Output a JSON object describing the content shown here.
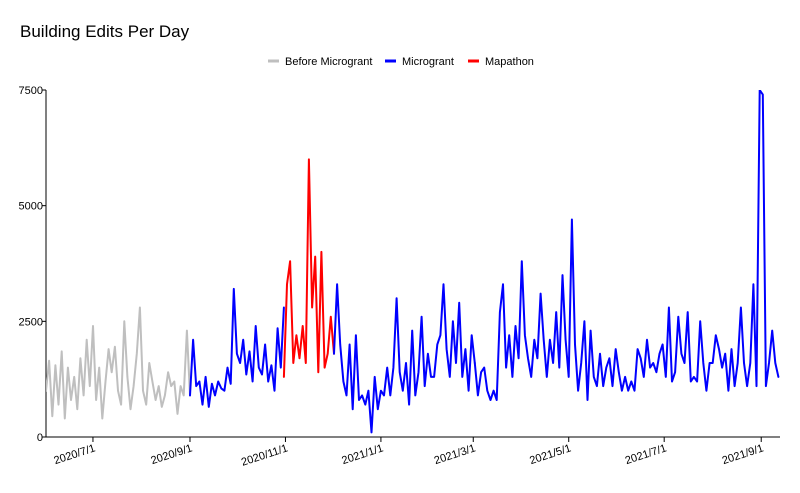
{
  "chart_data": {
    "type": "line",
    "title": "Building Edits Per Day",
    "xlabel": "",
    "ylabel": "",
    "ylim": [
      0,
      7500
    ],
    "xlim": [
      "2020-06-01",
      "2021-09-13"
    ],
    "yticks": [
      0,
      2500,
      5000,
      7500
    ],
    "xticks": [
      "2020-07-01",
      "2020-09-01",
      "2020-11-01",
      "2021-01-01",
      "2021-03-01",
      "2021-05-01",
      "2021-07-01",
      "2021-09-01"
    ],
    "xtick_labels": [
      "2020/7/1",
      "2020/9/1",
      "2020/11/1",
      "2021/1/1",
      "2021/3/1",
      "2021/5/1",
      "2021/7/1",
      "2021/9/1"
    ],
    "legend_position": "top-center",
    "grid": false,
    "series": [
      {
        "name": "Before Microgrant",
        "color": "#bfbfbf",
        "x": [
          "2020-06-01",
          "2020-06-03",
          "2020-06-05",
          "2020-06-07",
          "2020-06-09",
          "2020-06-11",
          "2020-06-13",
          "2020-06-15",
          "2020-06-17",
          "2020-06-19",
          "2020-06-21",
          "2020-06-23",
          "2020-06-25",
          "2020-06-27",
          "2020-06-29",
          "2020-07-01",
          "2020-07-03",
          "2020-07-05",
          "2020-07-07",
          "2020-07-09",
          "2020-07-11",
          "2020-07-13",
          "2020-07-15",
          "2020-07-17",
          "2020-07-19",
          "2020-07-21",
          "2020-07-23",
          "2020-07-25",
          "2020-07-27",
          "2020-07-29",
          "2020-07-31",
          "2020-08-02",
          "2020-08-04",
          "2020-08-06",
          "2020-08-08",
          "2020-08-10",
          "2020-08-12",
          "2020-08-14",
          "2020-08-16",
          "2020-08-18",
          "2020-08-20",
          "2020-08-22",
          "2020-08-24",
          "2020-08-26",
          "2020-08-28",
          "2020-08-30",
          "2020-09-01"
        ],
        "y": [
          1000,
          1650,
          450,
          1550,
          700,
          1850,
          400,
          1500,
          800,
          1300,
          600,
          1700,
          900,
          2100,
          1100,
          2400,
          800,
          1500,
          400,
          1200,
          1900,
          1400,
          1950,
          1000,
          700,
          2500,
          1300,
          600,
          1100,
          1800,
          2800,
          1000,
          700,
          1600,
          1200,
          800,
          1100,
          650,
          900,
          1400,
          1100,
          1200,
          500,
          1100,
          900,
          2300,
          900
        ]
      },
      {
        "name": "Microgrant",
        "color": "#0000ff",
        "x": [
          "2020-09-01",
          "2020-09-03",
          "2020-09-05",
          "2020-09-07",
          "2020-09-09",
          "2020-09-11",
          "2020-09-13",
          "2020-09-15",
          "2020-09-17",
          "2020-09-19",
          "2020-09-21",
          "2020-09-23",
          "2020-09-25",
          "2020-09-27",
          "2020-09-29",
          "2020-10-01",
          "2020-10-03",
          "2020-10-05",
          "2020-10-07",
          "2020-10-09",
          "2020-10-11",
          "2020-10-13",
          "2020-10-15",
          "2020-10-17",
          "2020-10-19",
          "2020-10-21",
          "2020-10-23",
          "2020-10-25",
          "2020-10-27",
          "2020-10-29",
          "2020-10-31"
        ],
        "y": [
          900,
          2100,
          1100,
          1200,
          700,
          1300,
          650,
          1150,
          900,
          1200,
          1050,
          1000,
          1500,
          1150,
          3200,
          1800,
          1600,
          2100,
          1350,
          1850,
          1200,
          2400,
          1500,
          1350,
          2000,
          1200,
          1550,
          1000,
          2350,
          1500,
          2800
        ]
      },
      {
        "name": "Mapathon",
        "color": "#ff0000",
        "x": [
          "2020-10-31",
          "2020-11-02",
          "2020-11-04",
          "2020-11-06",
          "2020-11-08",
          "2020-11-10",
          "2020-11-12",
          "2020-11-14",
          "2020-11-16",
          "2020-11-18",
          "2020-11-20",
          "2020-11-22",
          "2020-11-24",
          "2020-11-26",
          "2020-11-28",
          "2020-11-30",
          "2020-12-02"
        ],
        "y": [
          1300,
          3300,
          3800,
          1600,
          2200,
          1700,
          2400,
          1600,
          6000,
          2800,
          3900,
          1400,
          4000,
          1500,
          1800,
          2600,
          1800
        ]
      },
      {
        "name": "Microgrant",
        "color": "#0000ff",
        "x": [
          "2020-12-02",
          "2020-12-04",
          "2020-12-06",
          "2020-12-08",
          "2020-12-10",
          "2020-12-12",
          "2020-12-14",
          "2020-12-16",
          "2020-12-18",
          "2020-12-20",
          "2020-12-22",
          "2020-12-24",
          "2020-12-26",
          "2020-12-28",
          "2020-12-30",
          "2021-01-01",
          "2021-01-03",
          "2021-01-05",
          "2021-01-07",
          "2021-01-09",
          "2021-01-11",
          "2021-01-13",
          "2021-01-15",
          "2021-01-17",
          "2021-01-19",
          "2021-01-21",
          "2021-01-23",
          "2021-01-25",
          "2021-01-27",
          "2021-01-29",
          "2021-01-31",
          "2021-02-02",
          "2021-02-04",
          "2021-02-06",
          "2021-02-08",
          "2021-02-10",
          "2021-02-12",
          "2021-02-14",
          "2021-02-16",
          "2021-02-18",
          "2021-02-20",
          "2021-02-22",
          "2021-02-24",
          "2021-02-26",
          "2021-02-28",
          "2021-03-02"
        ],
        "y": [
          1800,
          3300,
          2000,
          1200,
          900,
          2000,
          600,
          2200,
          800,
          900,
          700,
          1000,
          100,
          1300,
          600,
          1000,
          900,
          1500,
          900,
          1500,
          3000,
          1400,
          1000,
          1600,
          700,
          2300,
          900,
          1400,
          2600,
          1100,
          1800,
          1300,
          1300,
          2000,
          2200,
          3300,
          1900,
          1300,
          2500,
          1600,
          2900,
          1300,
          1900,
          1000,
          2200,
          1600
        ]
      },
      {
        "name": "Microgrant",
        "color": "#0000ff",
        "x": [
          "2021-03-02",
          "2021-03-04",
          "2021-03-06",
          "2021-03-08",
          "2021-03-10",
          "2021-03-12",
          "2021-03-14",
          "2021-03-16",
          "2021-03-18",
          "2021-03-20",
          "2021-03-22",
          "2021-03-24",
          "2021-03-26",
          "2021-03-28",
          "2021-03-30",
          "2021-04-01",
          "2021-04-03",
          "2021-04-05",
          "2021-04-07",
          "2021-04-09",
          "2021-04-11",
          "2021-04-13",
          "2021-04-15",
          "2021-04-17",
          "2021-04-19",
          "2021-04-21",
          "2021-04-23",
          "2021-04-25",
          "2021-04-27",
          "2021-04-29",
          "2021-05-01",
          "2021-05-03",
          "2021-05-05",
          "2021-05-07",
          "2021-05-09",
          "2021-05-11",
          "2021-05-13",
          "2021-05-15",
          "2021-05-17",
          "2021-05-19",
          "2021-05-21",
          "2021-05-23",
          "2021-05-25",
          "2021-05-27",
          "2021-05-29",
          "2021-05-31",
          "2021-06-02",
          "2021-06-04",
          "2021-06-06",
          "2021-06-08",
          "2021-06-10",
          "2021-06-12",
          "2021-06-14",
          "2021-06-16",
          "2021-06-18",
          "2021-06-20",
          "2021-06-22",
          "2021-06-24",
          "2021-06-26",
          "2021-06-28",
          "2021-06-30",
          "2021-07-02",
          "2021-07-04",
          "2021-07-06",
          "2021-07-08",
          "2021-07-10",
          "2021-07-12",
          "2021-07-14",
          "2021-07-16",
          "2021-07-18",
          "2021-07-20",
          "2021-07-22",
          "2021-07-24",
          "2021-07-26",
          "2021-07-28",
          "2021-07-30",
          "2021-08-01",
          "2021-08-03",
          "2021-08-05",
          "2021-08-07",
          "2021-08-09",
          "2021-08-11",
          "2021-08-13",
          "2021-08-15",
          "2021-08-17",
          "2021-08-19",
          "2021-08-21",
          "2021-08-23",
          "2021-08-25",
          "2021-08-27",
          "2021-08-29",
          "2021-08-31",
          "2021-09-02",
          "2021-09-04",
          "2021-09-06",
          "2021-09-08",
          "2021-09-10",
          "2021-09-12"
        ],
        "y": [
          1600,
          900,
          1400,
          1500,
          1000,
          800,
          1000,
          800,
          2700,
          3300,
          1500,
          2200,
          1300,
          2400,
          1700,
          3800,
          2200,
          1700,
          1300,
          2100,
          1700,
          3100,
          2100,
          1300,
          2100,
          1600,
          2700,
          1500,
          3500,
          2100,
          1300,
          4700,
          2000,
          1000,
          1600,
          2500,
          800,
          2300,
          1300,
          1100,
          1800,
          1100,
          1500,
          1700,
          1100,
          1900,
          1400,
          1000,
          1300,
          1000,
          1200,
          1000,
          1900,
          1700,
          1300,
          2100,
          1500,
          1600,
          1400,
          1800,
          2000,
          1300,
          2800,
          1200,
          1400,
          2600,
          1800,
          1600,
          2700,
          1200,
          1300,
          1200,
          2500,
          1600,
          1000,
          1600,
          1600,
          2200,
          1900,
          1500,
          1800,
          1000,
          1900,
          1100,
          1600,
          2800,
          1600,
          1100,
          1600,
          3300,
          1100,
          7500,
          7400,
          1100,
          1600,
          2300,
          1600,
          1300
        ]
      }
    ]
  }
}
